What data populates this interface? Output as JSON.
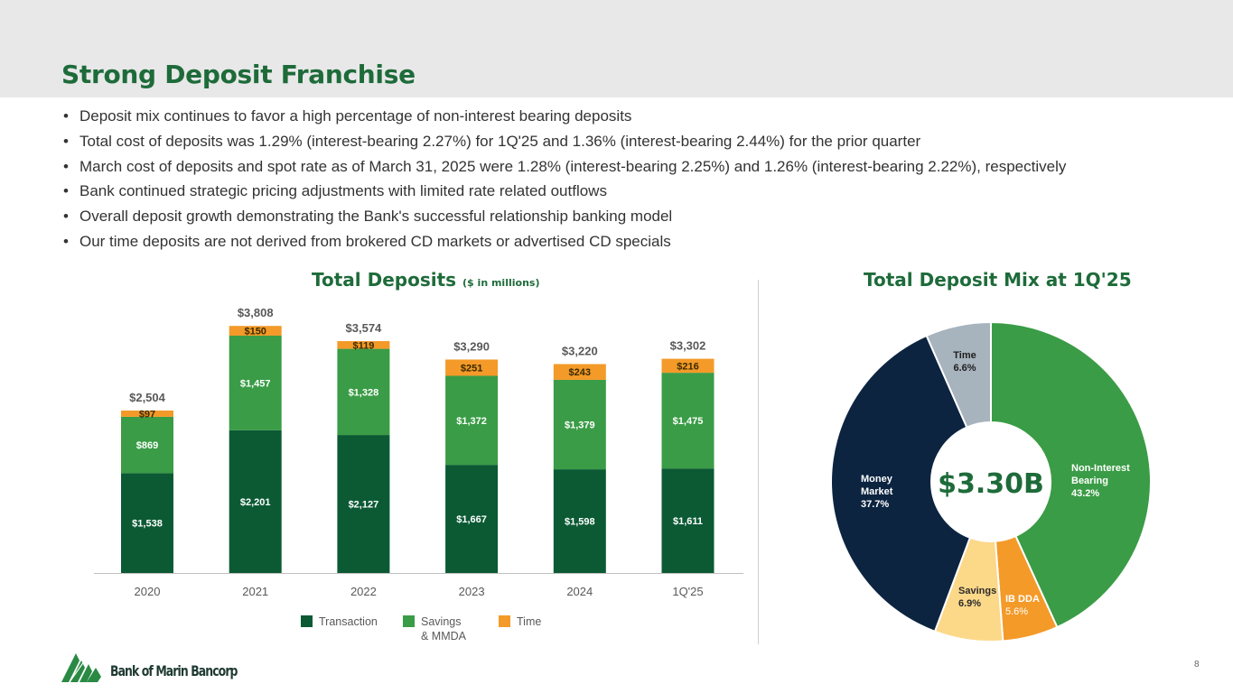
{
  "page": {
    "title": "Strong Deposit Franchise",
    "page_number": "8",
    "logo_text": "Bank of Marin Bancorp",
    "bullets": [
      "Deposit mix continues to favor a high percentage of non-interest bearing deposits",
      "Total cost of deposits was 1.29% (interest-bearing 2.27%) for 1Q'25 and 1.36% (interest-bearing 2.44%) for the prior quarter",
      "March cost of deposits and spot rate as of March 31, 2025 were 1.28% (interest-bearing 2.25%) and 1.26% (interest-bearing 2.22%), respectively",
      "Bank continued strategic pricing adjustments with limited rate related outflows",
      "Overall deposit growth demonstrating the Bank's successful relationship banking model",
      "Our time deposits are not derived from brokered CD markets or advertised CD specials"
    ]
  },
  "colors": {
    "transaction": "#0b5a34",
    "savings": "#3a9c46",
    "time": "#f39a29",
    "money_market": "#0c2440",
    "savings_slice": "#fcd889",
    "time_slice": "#a7b3bd",
    "title_green": "#1e6b3a"
  },
  "chart_data": [
    {
      "type": "bar",
      "stacked": true,
      "title": "Total Deposits",
      "subtitle": "($ in millions)",
      "categories": [
        "2020",
        "2021",
        "2022",
        "2023",
        "2024",
        "1Q'25"
      ],
      "series": [
        {
          "name": "Transaction",
          "values": [
            1538,
            2201,
            2127,
            1667,
            1598,
            1611
          ],
          "labels": [
            "$1,538",
            "$2,201",
            "$2,127",
            "$1,667",
            "$1,598",
            "$1,611"
          ]
        },
        {
          "name": "Savings & MMDA",
          "values": [
            869,
            1457,
            1328,
            1372,
            1379,
            1475
          ],
          "labels": [
            "$869",
            "$1,457",
            "$1,328",
            "$1,372",
            "$1,379",
            "$1,475"
          ]
        },
        {
          "name": "Time",
          "values": [
            97,
            150,
            119,
            251,
            243,
            216
          ],
          "labels": [
            "$97",
            "$150",
            "$119",
            "$251",
            "$243",
            "$216"
          ]
        }
      ],
      "totals": [
        2504,
        3808,
        3574,
        3290,
        3220,
        3302
      ],
      "total_labels": [
        "$2,504",
        "$3,808",
        "$3,574",
        "$3,290",
        "$3,220",
        "$3,302"
      ],
      "legend": [
        "Transaction",
        "Savings\n& MMDA",
        "Time"
      ],
      "legend_position": "bottom",
      "grid": false
    },
    {
      "type": "pie",
      "donut": true,
      "title": "Total Deposit Mix at 1Q'25",
      "center_label": "$3.30B",
      "slices": [
        {
          "name": "Non-Interest Bearing",
          "label": "Non-Interest\nBearing",
          "value": 43.2,
          "value_label": "43.2%"
        },
        {
          "name": "IB DDA",
          "label": "IB DDA",
          "value": 5.6,
          "value_label": "5.6%"
        },
        {
          "name": "Savings",
          "label": "Savings",
          "value": 6.9,
          "value_label": "6.9%"
        },
        {
          "name": "Money Market",
          "label": "Money\nMarket",
          "value": 37.7,
          "value_label": "37.7%"
        },
        {
          "name": "Time",
          "label": "Time",
          "value": 6.6,
          "value_label": "6.6%"
        }
      ]
    }
  ]
}
